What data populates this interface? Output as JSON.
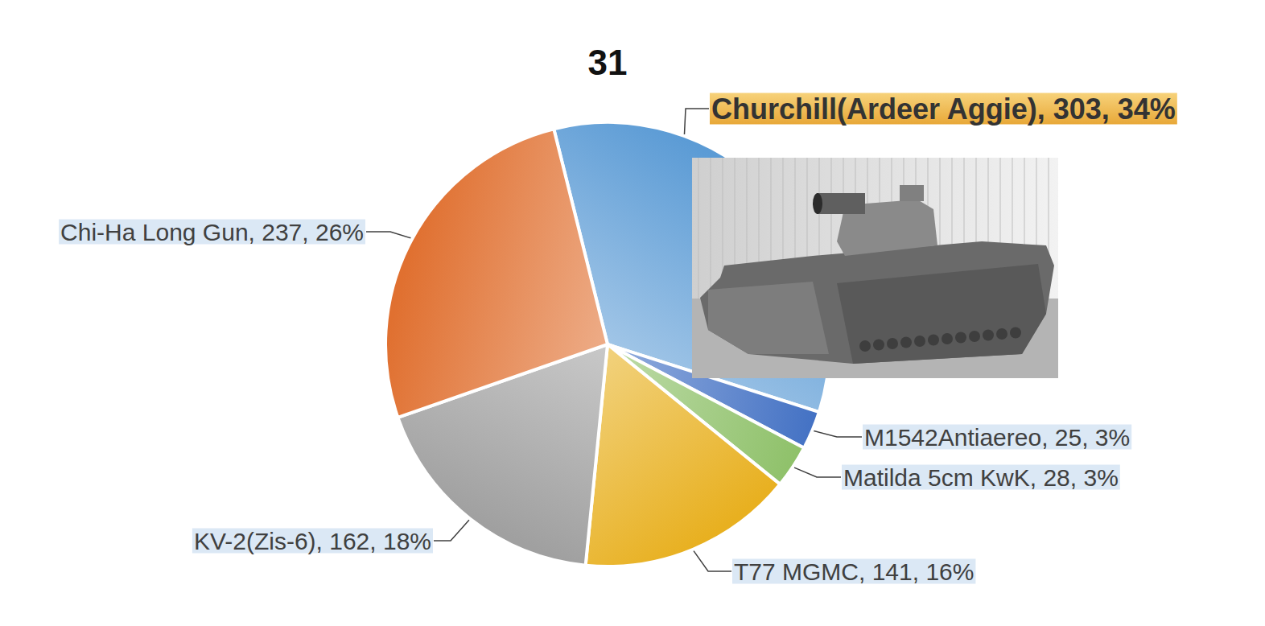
{
  "chart_data": {
    "type": "pie",
    "title": "31",
    "categories": [
      "Churchill(Ardeer Aggie)",
      "M1542Antiaereo",
      "Matilda 5cm KwK",
      "T77 MGMC",
      "KV-2(Zis-6)",
      "Chi-Ha Long Gun"
    ],
    "values": [
      303,
      25,
      28,
      141,
      162,
      237
    ],
    "value_labels": [
      "Churchill(Ardeer Aggie), 303, 34%",
      "M1542Antiaereo, 25, 3%",
      "Matilda 5cm KwK, 28, 3%",
      "T77 MGMC, 141, 16%",
      "KV-2(Zis-6), 162, 18%",
      "Chi-Ha Long Gun, 237, 26%"
    ],
    "colors": [
      "#5b9bd5",
      "#4472c4",
      "#8fc16a",
      "#e8b020",
      "#a0a0a0",
      "#e07030"
    ],
    "data_labels": true
  }
}
